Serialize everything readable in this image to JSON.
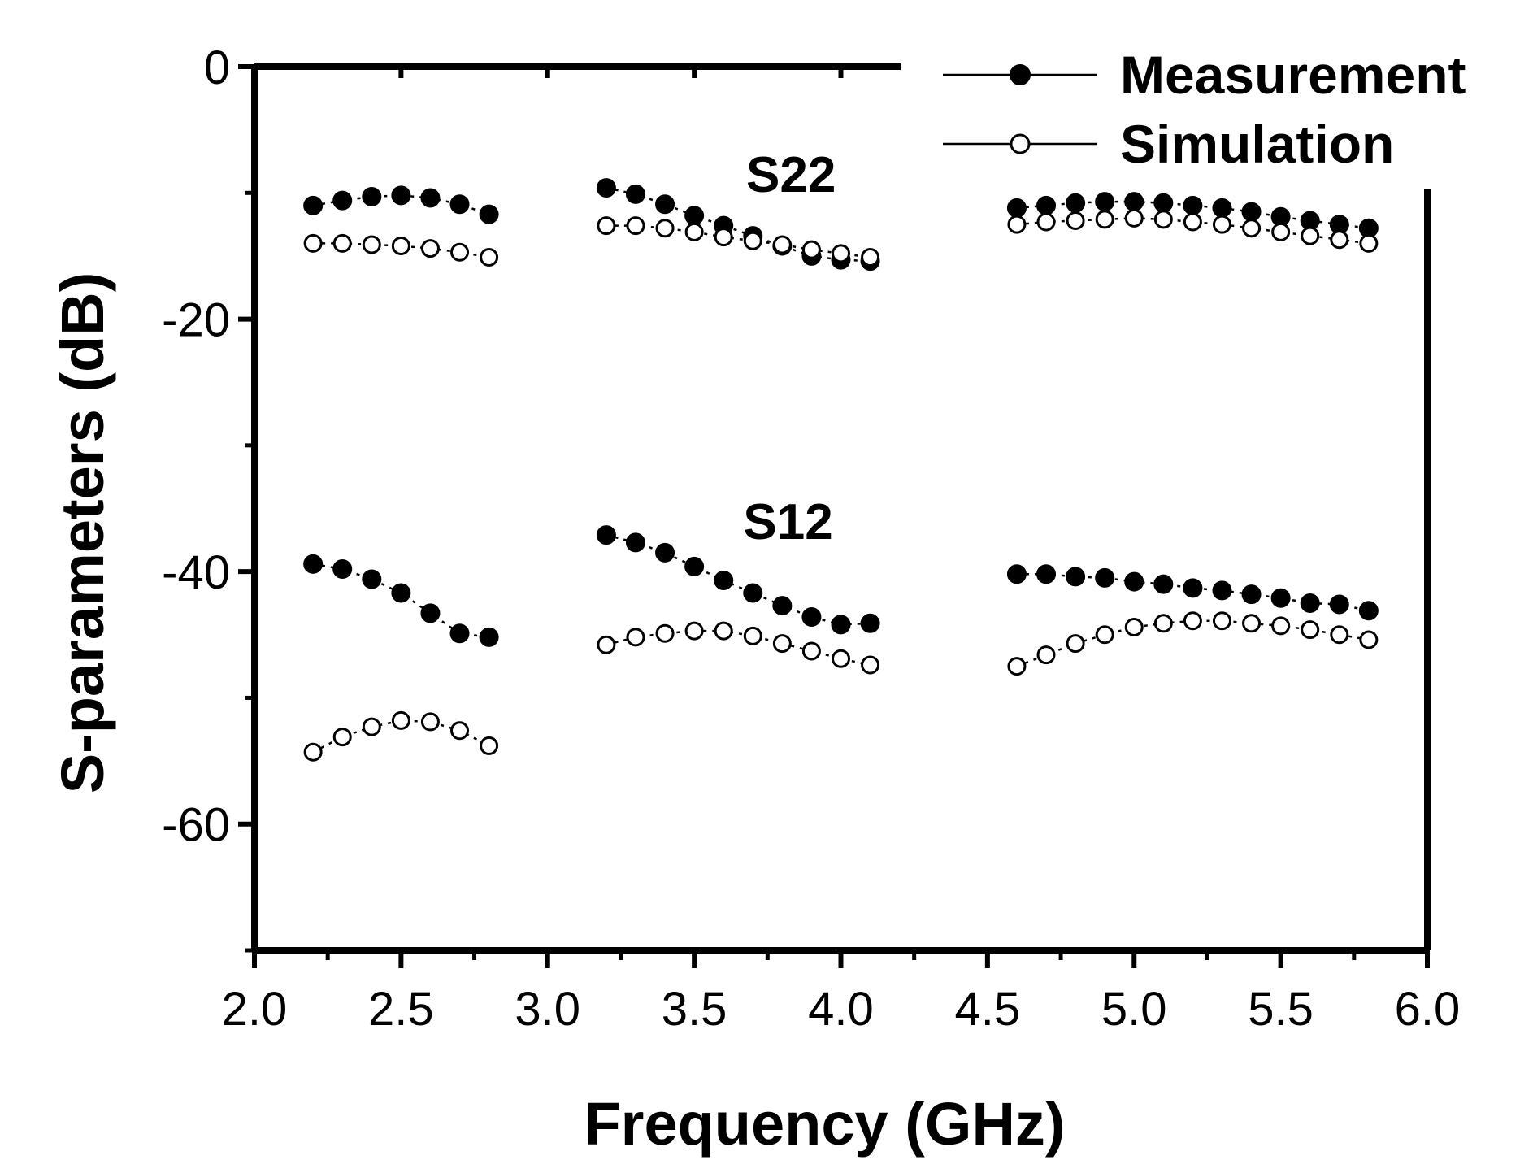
{
  "chart_data": {
    "type": "line",
    "xlabel": "Frequency (GHz)",
    "ylabel": "S-parameters (dB)",
    "xlim": [
      2.0,
      6.0
    ],
    "ylim": [
      -70,
      0
    ],
    "xticks": [
      2.0,
      2.5,
      3.0,
      3.5,
      4.0,
      4.5,
      5.0,
      5.5,
      6.0
    ],
    "xtick_labels": [
      "2.0",
      "2.5",
      "3.0",
      "3.5",
      "4.0",
      "4.5",
      "5.0",
      "5.5",
      "6.0"
    ],
    "yticks": [
      0,
      -20,
      -40,
      -60
    ],
    "ytick_labels": [
      "0",
      "-20",
      "-40",
      "-60"
    ],
    "grid": false,
    "legend": {
      "position": "top-right",
      "entries": [
        {
          "label": "Measurement",
          "marker": "filled-circle"
        },
        {
          "label": "Simulation",
          "marker": "open-circle"
        }
      ]
    },
    "annotations": [
      {
        "text": "S22",
        "x": 3.83,
        "y": -8.5
      },
      {
        "text": "S12",
        "x": 3.82,
        "y": -36.0
      }
    ],
    "series": [
      {
        "name": "S22 Measurement (band 1)",
        "kind": "measurement",
        "x": [
          2.2,
          2.3,
          2.4,
          2.5,
          2.6,
          2.7,
          2.8
        ],
        "values": [
          -11.0,
          -10.6,
          -10.3,
          -10.2,
          -10.4,
          -10.9,
          -11.7
        ]
      },
      {
        "name": "S22 Simulation (band 1)",
        "kind": "simulation",
        "x": [
          2.2,
          2.3,
          2.4,
          2.5,
          2.6,
          2.7,
          2.8
        ],
        "values": [
          -14.0,
          -14.0,
          -14.1,
          -14.2,
          -14.4,
          -14.7,
          -15.1
        ]
      },
      {
        "name": "S12 Measurement (band 1)",
        "kind": "measurement",
        "x": [
          2.2,
          2.3,
          2.4,
          2.5,
          2.6,
          2.7,
          2.8
        ],
        "values": [
          -39.4,
          -39.8,
          -40.6,
          -41.7,
          -43.3,
          -44.9,
          -45.2
        ]
      },
      {
        "name": "S12 Simulation (band 1)",
        "kind": "simulation",
        "x": [
          2.2,
          2.3,
          2.4,
          2.5,
          2.6,
          2.7,
          2.8
        ],
        "values": [
          -54.3,
          -53.1,
          -52.3,
          -51.8,
          -51.9,
          -52.6,
          -53.8
        ]
      },
      {
        "name": "S22 Measurement (band 2)",
        "kind": "measurement",
        "x": [
          3.2,
          3.3,
          3.4,
          3.5,
          3.6,
          3.7,
          3.8,
          3.9,
          4.0,
          4.1
        ],
        "values": [
          -9.6,
          -10.1,
          -10.9,
          -11.8,
          -12.6,
          -13.4,
          -14.2,
          -15.0,
          -15.3,
          -15.4
        ]
      },
      {
        "name": "S22 Simulation (band 2)",
        "kind": "simulation",
        "x": [
          3.2,
          3.3,
          3.4,
          3.5,
          3.6,
          3.7,
          3.8,
          3.9,
          4.0,
          4.1
        ],
        "values": [
          -12.6,
          -12.6,
          -12.8,
          -13.1,
          -13.5,
          -13.8,
          -14.1,
          -14.5,
          -14.8,
          -15.1
        ]
      },
      {
        "name": "S12 Measurement (band 2)",
        "kind": "measurement",
        "x": [
          3.2,
          3.3,
          3.4,
          3.5,
          3.6,
          3.7,
          3.8,
          3.9,
          4.0,
          4.1
        ],
        "values": [
          -37.1,
          -37.7,
          -38.5,
          -39.6,
          -40.7,
          -41.7,
          -42.7,
          -43.6,
          -44.2,
          -44.1
        ]
      },
      {
        "name": "S12 Simulation (band 2)",
        "kind": "simulation",
        "x": [
          3.2,
          3.3,
          3.4,
          3.5,
          3.6,
          3.7,
          3.8,
          3.9,
          4.0,
          4.1
        ],
        "values": [
          -45.8,
          -45.2,
          -44.9,
          -44.7,
          -44.7,
          -45.1,
          -45.7,
          -46.3,
          -46.9,
          -47.4
        ]
      },
      {
        "name": "S22 Measurement (band 3)",
        "kind": "measurement",
        "x": [
          4.6,
          4.7,
          4.8,
          4.9,
          5.0,
          5.1,
          5.2,
          5.3,
          5.4,
          5.5,
          5.6,
          5.7,
          5.8
        ],
        "values": [
          -11.2,
          -11.0,
          -10.8,
          -10.7,
          -10.7,
          -10.8,
          -11.0,
          -11.2,
          -11.5,
          -11.9,
          -12.2,
          -12.5,
          -12.8
        ]
      },
      {
        "name": "S22 Simulation (band 3)",
        "kind": "simulation",
        "x": [
          4.6,
          4.7,
          4.8,
          4.9,
          5.0,
          5.1,
          5.2,
          5.3,
          5.4,
          5.5,
          5.6,
          5.7,
          5.8
        ],
        "values": [
          -12.5,
          -12.3,
          -12.2,
          -12.1,
          -12.0,
          -12.1,
          -12.3,
          -12.5,
          -12.8,
          -13.1,
          -13.4,
          -13.7,
          -14.0
        ]
      },
      {
        "name": "S12 Measurement (band 3)",
        "kind": "measurement",
        "x": [
          4.6,
          4.7,
          4.8,
          4.9,
          5.0,
          5.1,
          5.2,
          5.3,
          5.4,
          5.5,
          5.6,
          5.7,
          5.8
        ],
        "values": [
          -40.2,
          -40.2,
          -40.4,
          -40.5,
          -40.8,
          -41.0,
          -41.3,
          -41.5,
          -41.8,
          -42.1,
          -42.5,
          -42.6,
          -43.1
        ]
      },
      {
        "name": "S12 Simulation (band 3)",
        "kind": "simulation",
        "x": [
          4.6,
          4.7,
          4.8,
          4.9,
          5.0,
          5.1,
          5.2,
          5.3,
          5.4,
          5.5,
          5.6,
          5.7,
          5.8
        ],
        "values": [
          -47.5,
          -46.6,
          -45.7,
          -45.0,
          -44.4,
          -44.1,
          -43.9,
          -43.9,
          -44.1,
          -44.3,
          -44.6,
          -45.0,
          -45.4
        ]
      }
    ]
  }
}
